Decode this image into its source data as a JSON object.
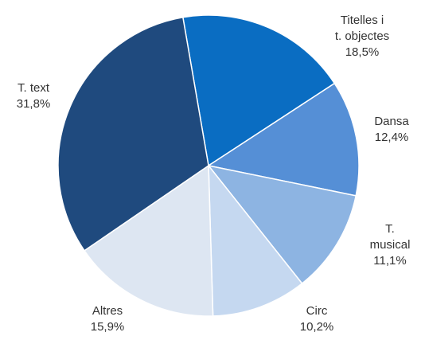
{
  "chart_data": {
    "type": "pie",
    "categories": [
      "Titelles i\nt. objectes",
      "Dansa",
      "T. musical",
      "Circ",
      "Altres",
      "T. text"
    ],
    "values": [
      18.5,
      12.4,
      11.1,
      10.2,
      15.9,
      31.8
    ],
    "value_labels": [
      "18,5%",
      "12,4%",
      "11,1%",
      "10,2%",
      "15,9%",
      "31,8%"
    ],
    "colors": [
      "#0a6dc2",
      "#558fd6",
      "#8db4e2",
      "#c5d8f0",
      "#dde6f2",
      "#1f4a7e"
    ]
  }
}
